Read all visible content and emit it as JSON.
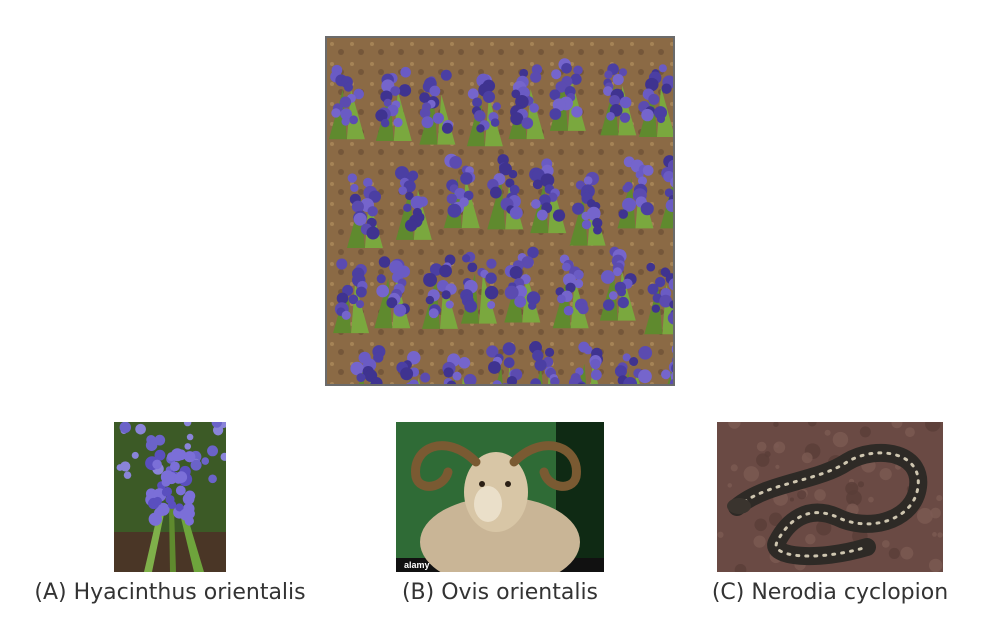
{
  "main": {
    "image_icon": "hyacinth-field-image"
  },
  "options": [
    {
      "caption": "(A) Hyacinthus orientalis",
      "image_icon": "hyacinth-flower-image"
    },
    {
      "caption": "(B) Ovis orientalis",
      "image_icon": "ram-image",
      "watermark": "alamy"
    },
    {
      "caption": "(C) Nerodia cyclopion",
      "image_icon": "snake-image"
    }
  ],
  "colors": {
    "flower_purple": "#5b4bb0",
    "leaf_green": "#5f8a2e",
    "soil_brown": "#8b6a45",
    "frame_gray": "#6b6b6b",
    "caption_text": "#333333"
  }
}
